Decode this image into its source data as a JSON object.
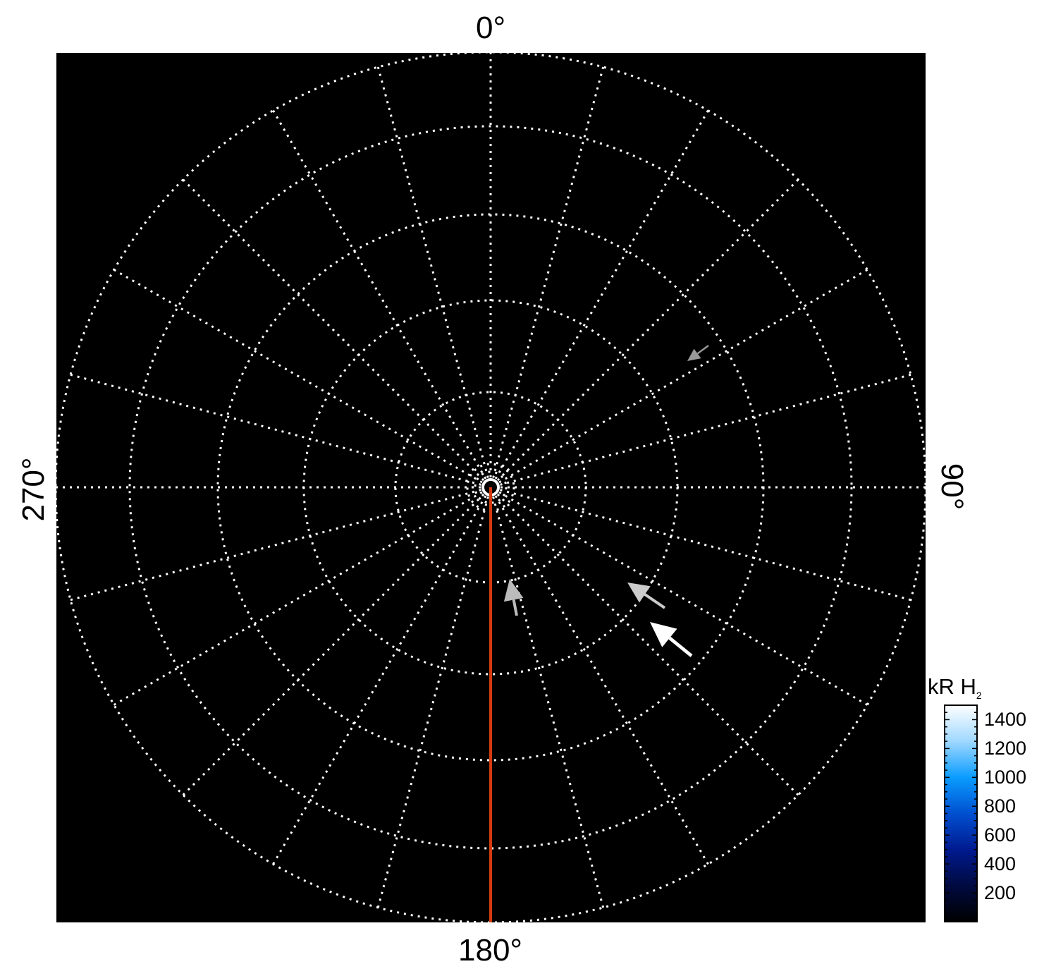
{
  "chart_data": {
    "type": "polar",
    "projection": "polar image map",
    "background_color": "#000000",
    "grid": true,
    "grid_style": "dotted white",
    "angular_tick_labels": [
      "0°",
      "90°",
      "180°",
      "270°"
    ],
    "angular_grid_step_deg": 15,
    "reference_line": {
      "angle_deg": 180,
      "color": "#d43c0e"
    },
    "arrows": [
      {
        "color": "#999999"
      },
      {
        "color": "#bbbbbb"
      },
      {
        "color": "#cccccc"
      },
      {
        "color": "#ffffff"
      }
    ],
    "colorbar": {
      "label": "kR H",
      "label_subscript": "2",
      "ticks": [
        200,
        400,
        600,
        800,
        1000,
        1200,
        1400
      ],
      "range": [
        0,
        1500
      ],
      "colormap": [
        "#000000",
        "#000a40",
        "#001a90",
        "#0050d0",
        "#0a9cff",
        "#9fd8ff",
        "#ffffff"
      ]
    }
  }
}
